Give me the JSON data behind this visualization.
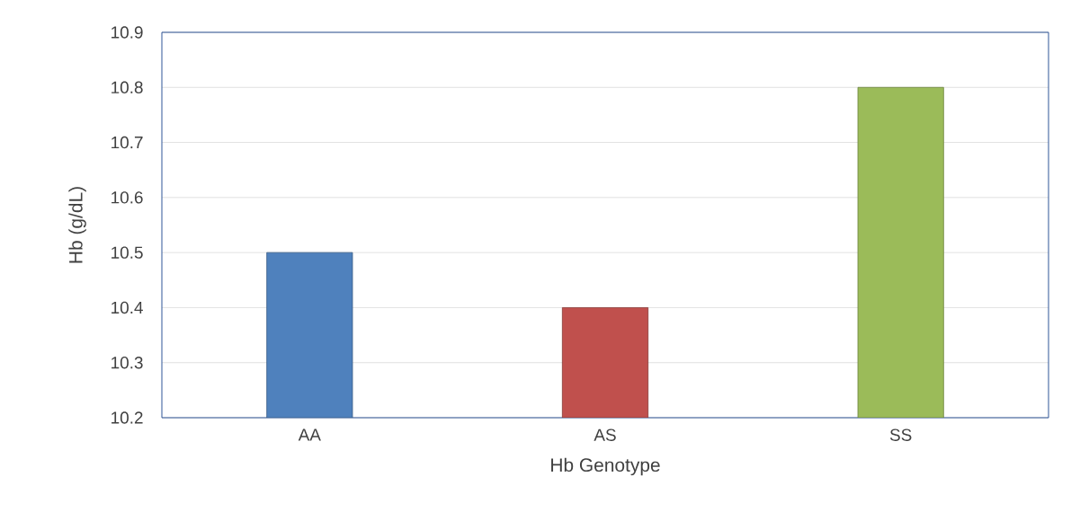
{
  "chart_data": {
    "type": "bar",
    "xlabel": "Hb Genotype",
    "ylabel": "Hb (g/dL)",
    "categories": [
      "AA",
      "AS",
      "SS"
    ],
    "values": [
      10.5,
      10.4,
      10.8
    ],
    "colors": [
      "#4f81bd",
      "#c0504d",
      "#9bbb59"
    ],
    "ylim": [
      10.2,
      10.9
    ],
    "yticks": [
      10.2,
      10.3,
      10.4,
      10.5,
      10.6,
      10.7,
      10.8,
      10.9
    ],
    "grid": "y"
  }
}
